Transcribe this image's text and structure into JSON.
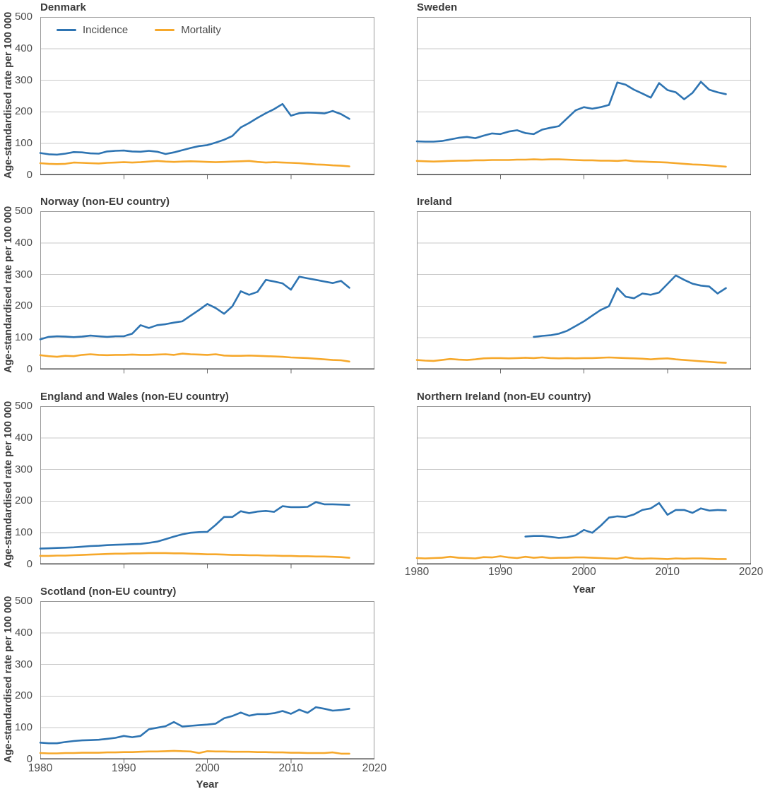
{
  "figure": {
    "y_axis_title": "Age-standardised rate per 100 000",
    "x_axis_title": "Year",
    "legend": [
      {
        "label": "Incidence",
        "color": "#2E74B2"
      },
      {
        "label": "Mortality",
        "color": "#F6A82B"
      }
    ]
  },
  "style": {
    "incidence_color": "#2E74B2",
    "mortality_color": "#F6A82B",
    "gridline_color": "#c8c8c8",
    "border_color": "#9a9a9a",
    "axis_color": "#474747",
    "tick_color": "#6a6a6a"
  },
  "axes": {
    "x_range": [
      1980,
      2020
    ],
    "y_range": [
      0,
      500
    ],
    "x_ticks": [
      1980,
      1990,
      2000,
      2010,
      2020
    ],
    "y_ticks": [
      0,
      100,
      200,
      300,
      400,
      500
    ]
  },
  "chart_data": [
    {
      "type": "line",
      "title": "Denmark",
      "xlabel": "Year",
      "ylabel": "Age-standardised rate per 100 000",
      "ylim": [
        0,
        500
      ],
      "xlim": [
        1980,
        2020
      ],
      "series": [
        {
          "name": "Incidence",
          "start_year": 1980,
          "values": [
            70,
            66,
            65,
            68,
            73,
            72,
            69,
            68,
            75,
            77,
            78,
            75,
            74,
            77,
            74,
            67,
            72,
            79,
            86,
            92,
            95,
            103,
            112,
            124,
            151,
            165,
            181,
            196,
            209,
            225,
            188,
            196,
            198,
            197,
            195,
            203,
            193,
            178
          ]
        },
        {
          "name": "Mortality",
          "start_year": 1980,
          "values": [
            38,
            36,
            35,
            36,
            40,
            39,
            38,
            37,
            39,
            40,
            41,
            40,
            41,
            43,
            45,
            43,
            42,
            43,
            44,
            43,
            42,
            41,
            42,
            43,
            44,
            45,
            42,
            40,
            41,
            40,
            39,
            38,
            36,
            34,
            33,
            31,
            30,
            28
          ]
        }
      ]
    },
    {
      "type": "line",
      "title": "Sweden",
      "xlabel": "Year",
      "ylabel": "Age-standardised rate per 100 000",
      "ylim": [
        0,
        500
      ],
      "xlim": [
        1980,
        2020
      ],
      "series": [
        {
          "name": "Incidence",
          "start_year": 1980,
          "values": [
            107,
            106,
            106,
            108,
            113,
            118,
            121,
            117,
            125,
            132,
            130,
            138,
            142,
            133,
            130,
            144,
            150,
            155,
            180,
            205,
            215,
            210,
            215,
            222,
            293,
            286,
            270,
            258,
            245,
            291,
            269,
            262,
            240,
            260,
            295,
            270,
            262,
            256
          ]
        },
        {
          "name": "Mortality",
          "start_year": 1980,
          "values": [
            45,
            44,
            43,
            44,
            45,
            46,
            46,
            47,
            47,
            48,
            48,
            48,
            49,
            49,
            50,
            49,
            50,
            50,
            49,
            48,
            47,
            47,
            46,
            46,
            45,
            47,
            44,
            43,
            42,
            41,
            40,
            38,
            36,
            34,
            33,
            31,
            29,
            27
          ]
        }
      ]
    },
    {
      "type": "line",
      "title": "Norway (non-EU country)",
      "xlabel": "Year",
      "ylabel": "Age-standardised rate per 100 000",
      "ylim": [
        0,
        500
      ],
      "xlim": [
        1980,
        2020
      ],
      "series": [
        {
          "name": "Incidence",
          "start_year": 1980,
          "values": [
            95,
            103,
            105,
            104,
            102,
            104,
            107,
            105,
            103,
            105,
            105,
            113,
            140,
            131,
            140,
            143,
            148,
            152,
            170,
            188,
            207,
            194,
            176,
            200,
            247,
            236,
            245,
            283,
            278,
            272,
            252,
            293,
            288,
            283,
            278,
            273,
            280,
            258
          ]
        },
        {
          "name": "Mortality",
          "start_year": 1980,
          "values": [
            45,
            42,
            40,
            43,
            42,
            46,
            48,
            46,
            45,
            46,
            46,
            47,
            46,
            46,
            47,
            48,
            46,
            50,
            48,
            47,
            46,
            48,
            44,
            43,
            43,
            44,
            43,
            42,
            41,
            40,
            38,
            37,
            36,
            34,
            32,
            30,
            29,
            25
          ]
        }
      ]
    },
    {
      "type": "line",
      "title": "Ireland",
      "xlabel": "Year",
      "ylabel": "Age-standardised rate per 100 000",
      "ylim": [
        0,
        500
      ],
      "xlim": [
        1980,
        2020
      ],
      "series": [
        {
          "name": "Incidence",
          "start_year": 1994,
          "values": [
            103,
            106,
            108,
            113,
            122,
            137,
            152,
            170,
            188,
            200,
            257,
            230,
            225,
            240,
            236,
            243,
            270,
            297,
            283,
            271,
            265,
            262,
            240,
            257
          ]
        },
        {
          "name": "Mortality",
          "start_year": 1980,
          "values": [
            30,
            28,
            27,
            30,
            33,
            31,
            30,
            32,
            35,
            36,
            36,
            35,
            36,
            37,
            36,
            38,
            36,
            35,
            36,
            35,
            36,
            36,
            37,
            38,
            37,
            36,
            35,
            34,
            32,
            34,
            35,
            32,
            30,
            28,
            26,
            24,
            22,
            21
          ]
        }
      ]
    },
    {
      "type": "line",
      "title": "England and Wales (non-EU country)",
      "xlabel": "Year",
      "ylabel": "Age-standardised rate per 100 000",
      "ylim": [
        0,
        500
      ],
      "xlim": [
        1980,
        2020
      ],
      "series": [
        {
          "name": "Incidence",
          "start_year": 1980,
          "values": [
            50,
            51,
            52,
            53,
            54,
            56,
            58,
            59,
            61,
            62,
            63,
            64,
            65,
            68,
            72,
            80,
            88,
            95,
            100,
            102,
            103,
            125,
            150,
            150,
            168,
            162,
            167,
            169,
            166,
            184,
            181,
            181,
            182,
            197,
            190,
            190,
            189,
            188
          ]
        },
        {
          "name": "Mortality",
          "start_year": 1980,
          "values": [
            27,
            27,
            28,
            28,
            29,
            30,
            31,
            32,
            33,
            34,
            34,
            35,
            35,
            36,
            36,
            36,
            35,
            35,
            34,
            33,
            32,
            32,
            31,
            30,
            30,
            29,
            29,
            28,
            28,
            27,
            27,
            26,
            26,
            25,
            25,
            24,
            23,
            21
          ]
        }
      ]
    },
    {
      "type": "line",
      "title": "Northern Ireland (non-EU country)",
      "xlabel": "Year",
      "ylabel": "Age-standardised rate per 100 000",
      "ylim": [
        0,
        500
      ],
      "xlim": [
        1980,
        2020
      ],
      "series": [
        {
          "name": "Incidence",
          "start_year": 1993,
          "values": [
            88,
            90,
            90,
            87,
            84,
            86,
            92,
            109,
            100,
            122,
            148,
            152,
            150,
            158,
            172,
            177,
            194,
            157,
            172,
            172,
            163,
            177,
            170,
            172,
            171
          ]
        },
        {
          "name": "Mortality",
          "start_year": 1980,
          "values": [
            20,
            19,
            20,
            21,
            24,
            21,
            20,
            19,
            23,
            22,
            26,
            22,
            20,
            24,
            21,
            23,
            20,
            21,
            21,
            22,
            22,
            21,
            20,
            19,
            18,
            23,
            19,
            18,
            19,
            18,
            17,
            19,
            18,
            19,
            19,
            18,
            17,
            17
          ]
        }
      ]
    },
    {
      "type": "line",
      "title": "Scotland (non-EU country)",
      "xlabel": "Year",
      "ylabel": "Age-standardised rate per 100 000",
      "ylim": [
        0,
        500
      ],
      "xlim": [
        1980,
        2020
      ],
      "series": [
        {
          "name": "Incidence",
          "start_year": 1980,
          "values": [
            53,
            51,
            51,
            55,
            58,
            60,
            61,
            62,
            65,
            68,
            74,
            70,
            74,
            95,
            100,
            105,
            118,
            104,
            106,
            108,
            110,
            113,
            130,
            137,
            148,
            138,
            143,
            143,
            146,
            153,
            144,
            157,
            147,
            165,
            160,
            154,
            156,
            160
          ]
        },
        {
          "name": "Mortality",
          "start_year": 1980,
          "values": [
            20,
            19,
            19,
            20,
            20,
            21,
            21,
            21,
            22,
            22,
            23,
            23,
            24,
            25,
            25,
            26,
            27,
            26,
            25,
            20,
            26,
            25,
            25,
            24,
            24,
            24,
            23,
            23,
            22,
            22,
            21,
            21,
            20,
            20,
            20,
            22,
            18,
            18
          ]
        }
      ]
    }
  ]
}
